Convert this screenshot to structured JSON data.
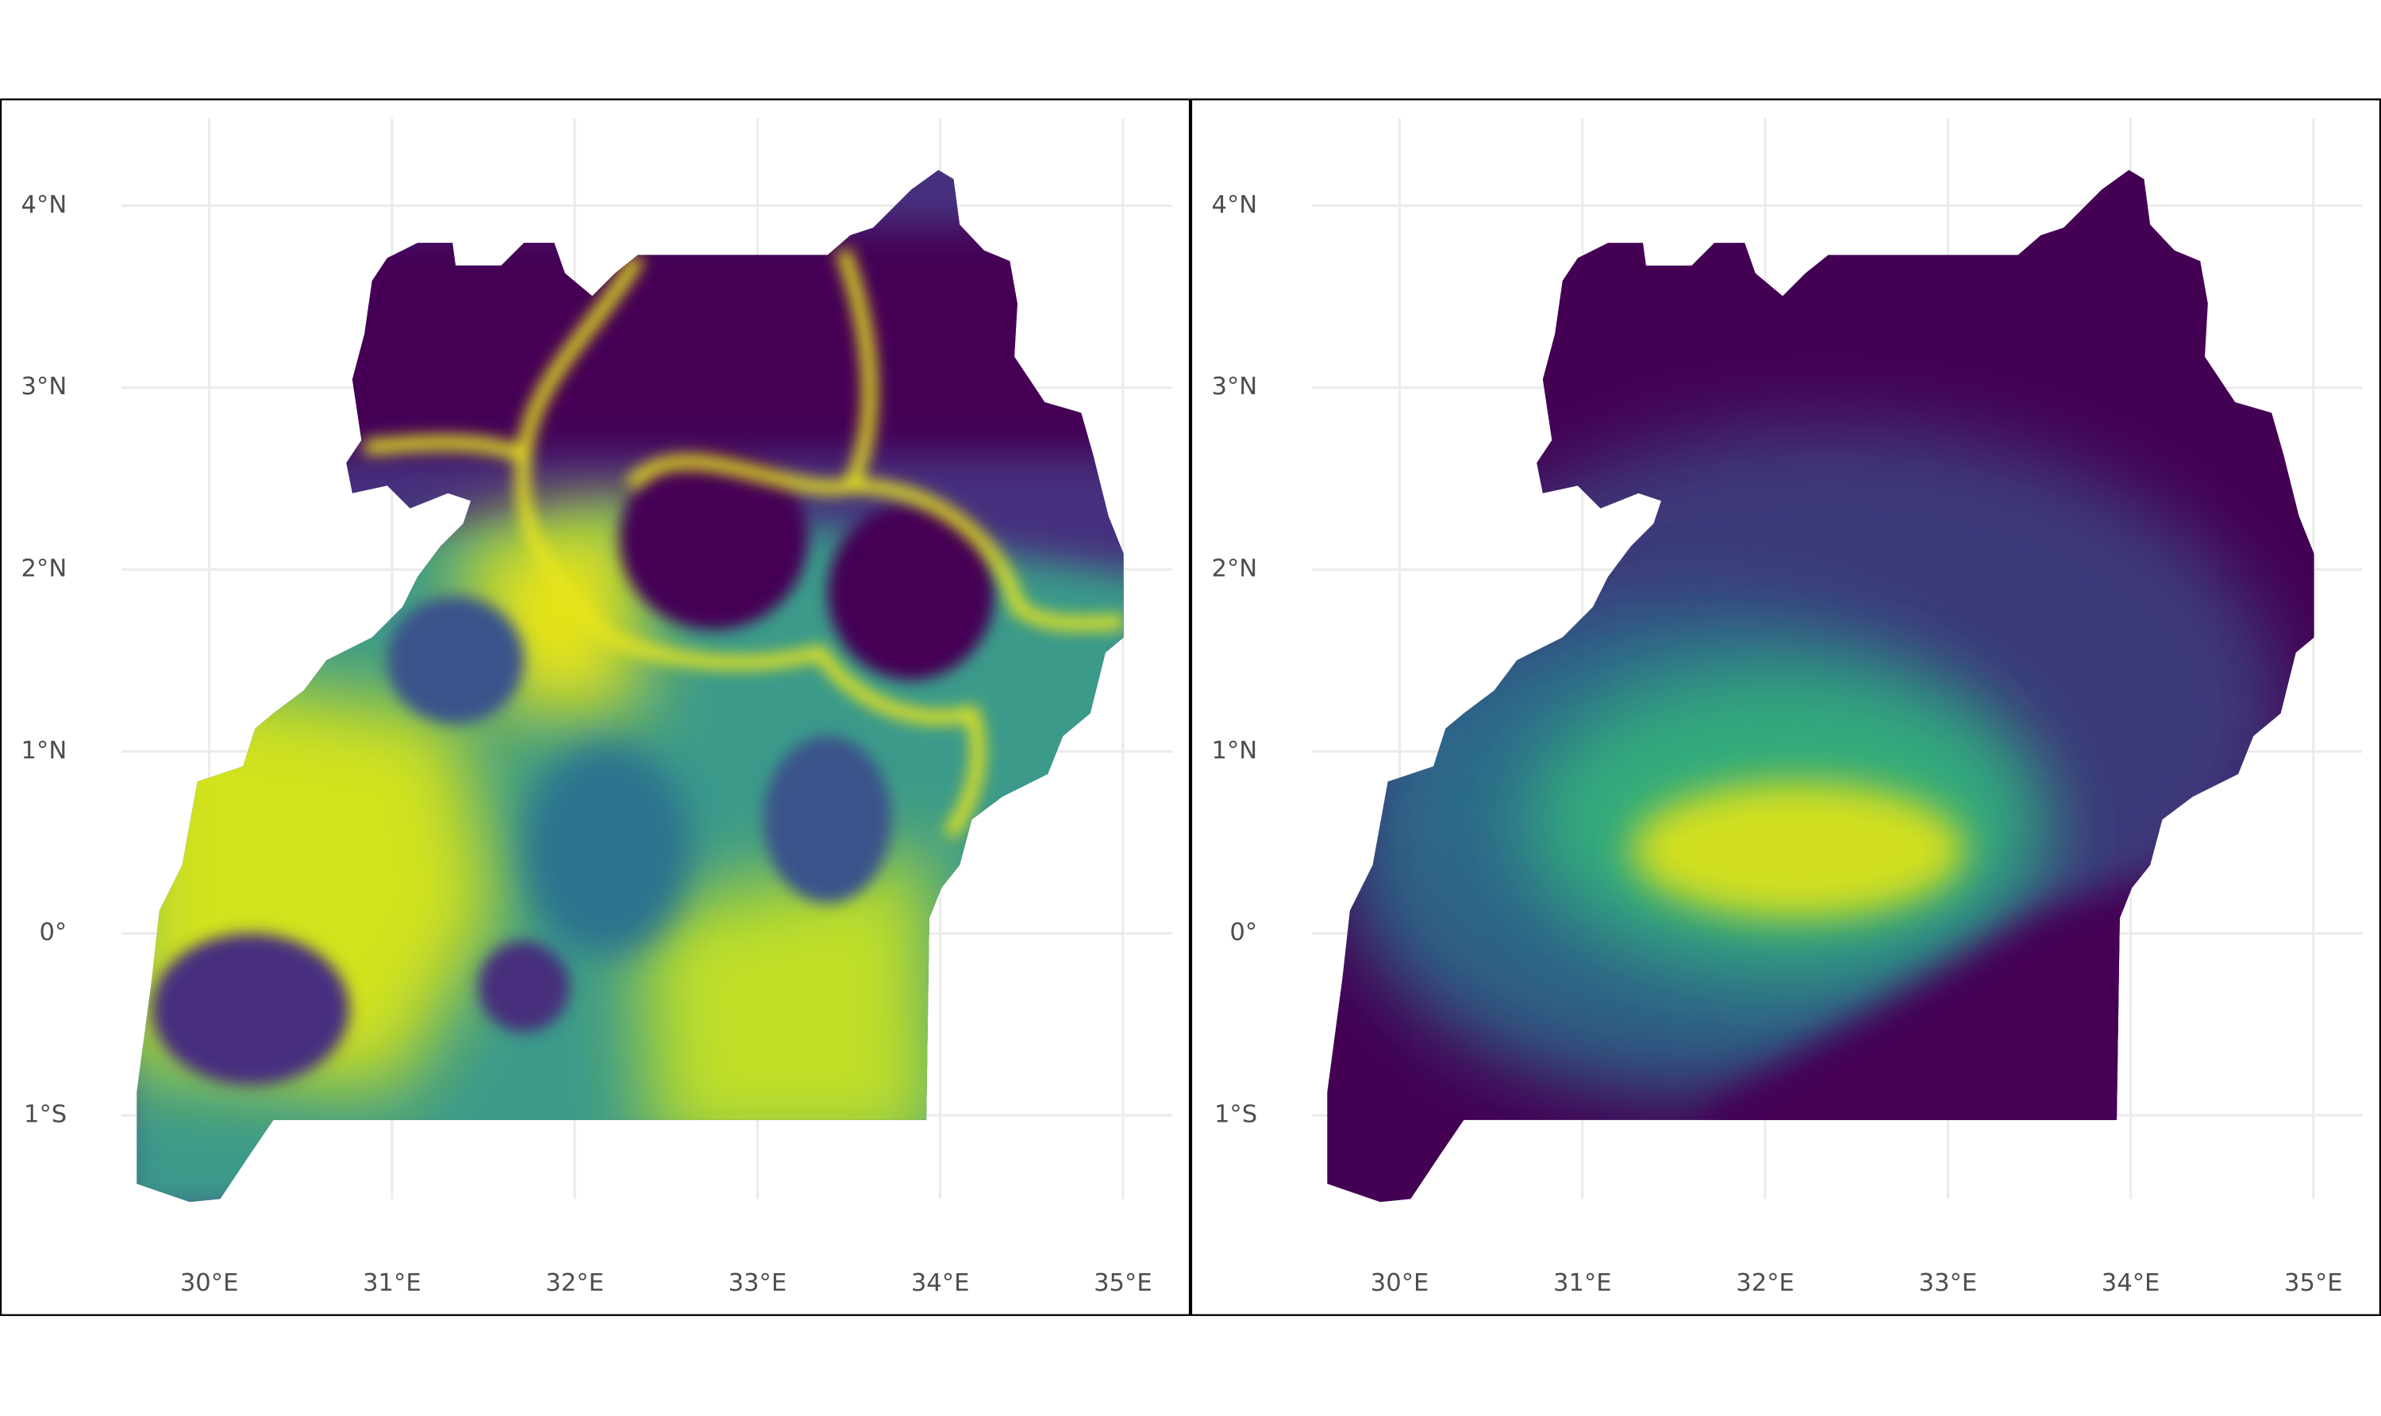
{
  "panels": [
    {
      "xlim": [
        29.52,
        35.27
      ],
      "ylim": [
        -1.46,
        4.48
      ],
      "xticks": [
        {
          "value": 30,
          "label": "30°E"
        },
        {
          "value": 31,
          "label": "31°E"
        },
        {
          "value": 32,
          "label": "32°E"
        },
        {
          "value": 33,
          "label": "33°E"
        },
        {
          "value": 34,
          "label": "34°E"
        },
        {
          "value": 35,
          "label": "35°E"
        }
      ],
      "yticks": [
        {
          "value": 4,
          "label": "4°N"
        },
        {
          "value": 3,
          "label": "3°N"
        },
        {
          "value": 2,
          "label": "2°N"
        },
        {
          "value": 1,
          "label": "1°N"
        },
        {
          "value": 0,
          "label": "0°"
        },
        {
          "value": -1,
          "label": "1°S"
        }
      ]
    },
    {
      "xlim": [
        29.52,
        35.27
      ],
      "ylim": [
        -1.46,
        4.48
      ],
      "xticks": [
        {
          "value": 30,
          "label": "30°E"
        },
        {
          "value": 31,
          "label": "31°E"
        },
        {
          "value": 32,
          "label": "32°E"
        },
        {
          "value": 33,
          "label": "33°E"
        },
        {
          "value": 34,
          "label": "34°E"
        },
        {
          "value": 35,
          "label": "35°E"
        }
      ],
      "yticks": [
        {
          "value": 4,
          "label": "4°N"
        },
        {
          "value": 3,
          "label": "3°N"
        },
        {
          "value": 2,
          "label": "2°N"
        },
        {
          "value": 1,
          "label": "1°N"
        },
        {
          "value": 0,
          "label": "0°"
        },
        {
          "value": -1,
          "label": "1°S"
        }
      ]
    }
  ]
}
